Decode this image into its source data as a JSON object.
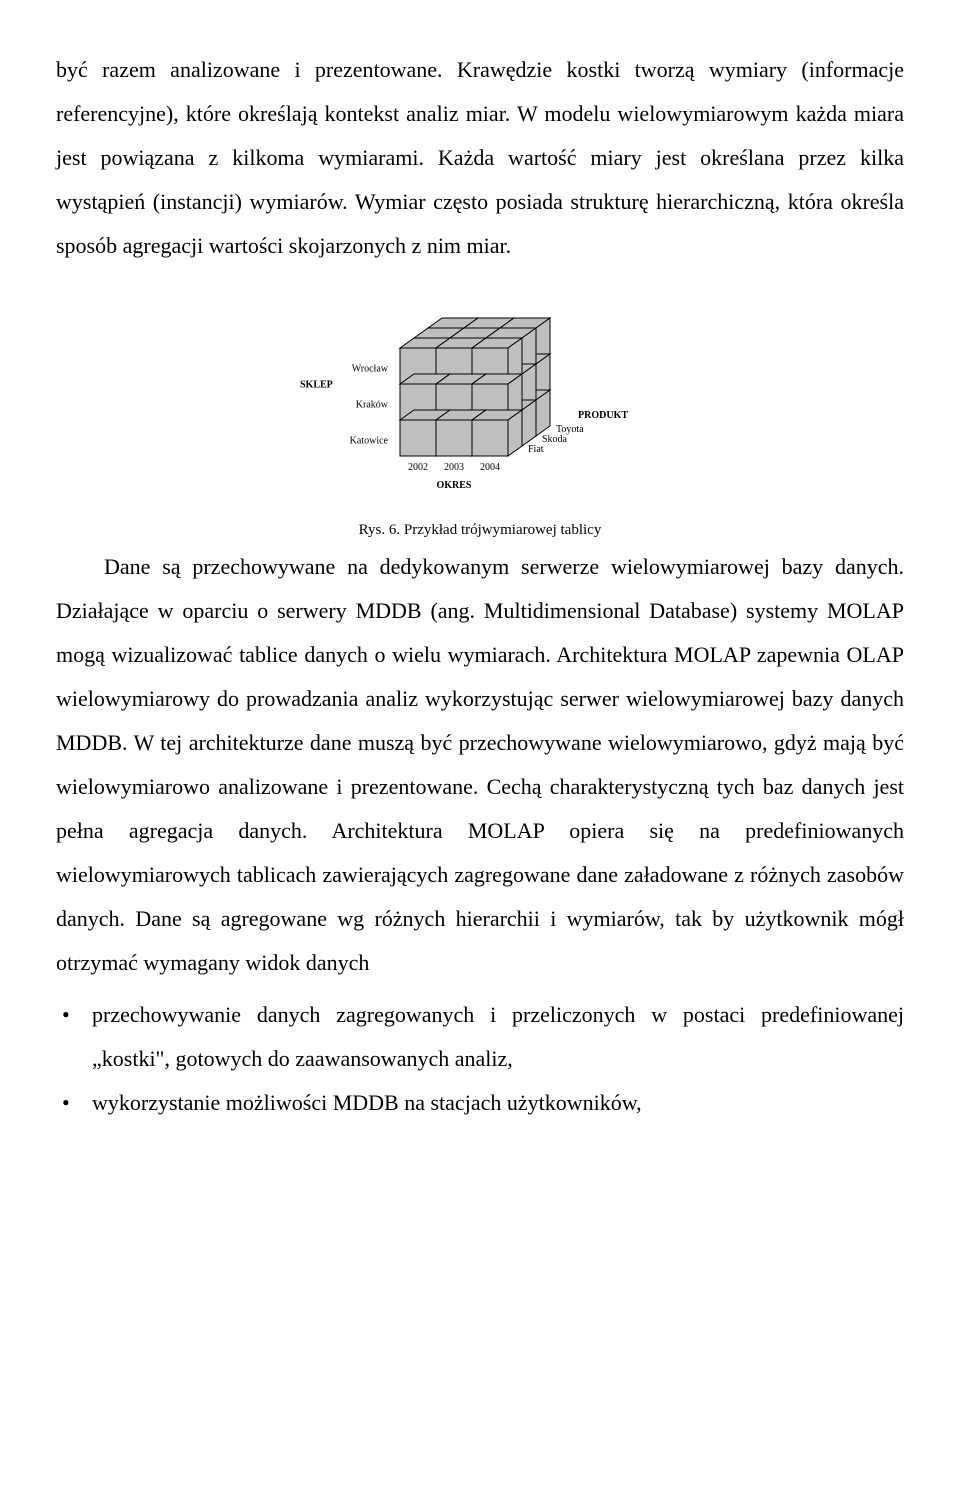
{
  "para1": "być razem analizowane i prezentowane. Krawędzie kostki tworzą wymiary (informacje  referencyjne), które określają kontekst analiz miar. W modelu wielowymiarowym każda miara jest powiązana z kilkoma wymiarami. Każda wartość miary jest określana przez kilka wystąpień (instancji) wymiarów. Wymiar często posiada strukturę hierarchiczną, która określa sposób agregacji wartości skojarzonych z nim miar.",
  "caption": "Rys. 6. Przykład trójwymiarowej tablicy",
  "para2_lead": "Dane są przechowywane na dedykowanym serwerze wielowymiarowej bazy danych. Działające w oparciu o serwery MDDB (ang. Multidimensional Database) systemy MOLAP mogą wizualizować tablice danych o wielu wymiarach. Architektura MOLAP zapewnia OLAP wielowymiarowy do prowadzania analiz wykorzystując serwer wielowymiarowej bazy danych MDDB. W tej architekturze dane muszą być przechowywane wielowymiarowo, gdyż  mają być wielowymiarowo analizowane i prezentowane. Cechą charakterystyczną tych baz danych jest pełna agregacja danych. Architektura MOLAP opiera się na predefiniowanych wielowymiarowych tablicach zawierających zagregowane dane załadowane z różnych zasobów danych. Dane są agregowane wg różnych hierarchii i wymiarów, tak by użytkownik mógł otrzymać wymagany widok danych",
  "bullet1": "przechowywanie danych zagregowanych i przeliczonych w postaci predefiniowanej „kostki\", gotowych do zaawansowanych analiz,",
  "bullet2": "wykorzystanie możliwości MDDB na stacjach użytkowników,",
  "figure": {
    "type": "cube-diagram",
    "rows_label": "SKLEP",
    "row_items": [
      "Wrocław",
      "Kraków",
      "Katowice"
    ],
    "cols_label": "OKRES",
    "col_items": [
      "2002",
      "2003",
      "2004"
    ],
    "depth_label": "PRODUKT",
    "depth_items": [
      "Fiat",
      "Skoda",
      "Toyota"
    ],
    "cube_fill": "#bfbfbf",
    "cube_stroke": "#000000",
    "label_fontsize": 10,
    "axis_fontsize": 10,
    "background": "#ffffff"
  }
}
